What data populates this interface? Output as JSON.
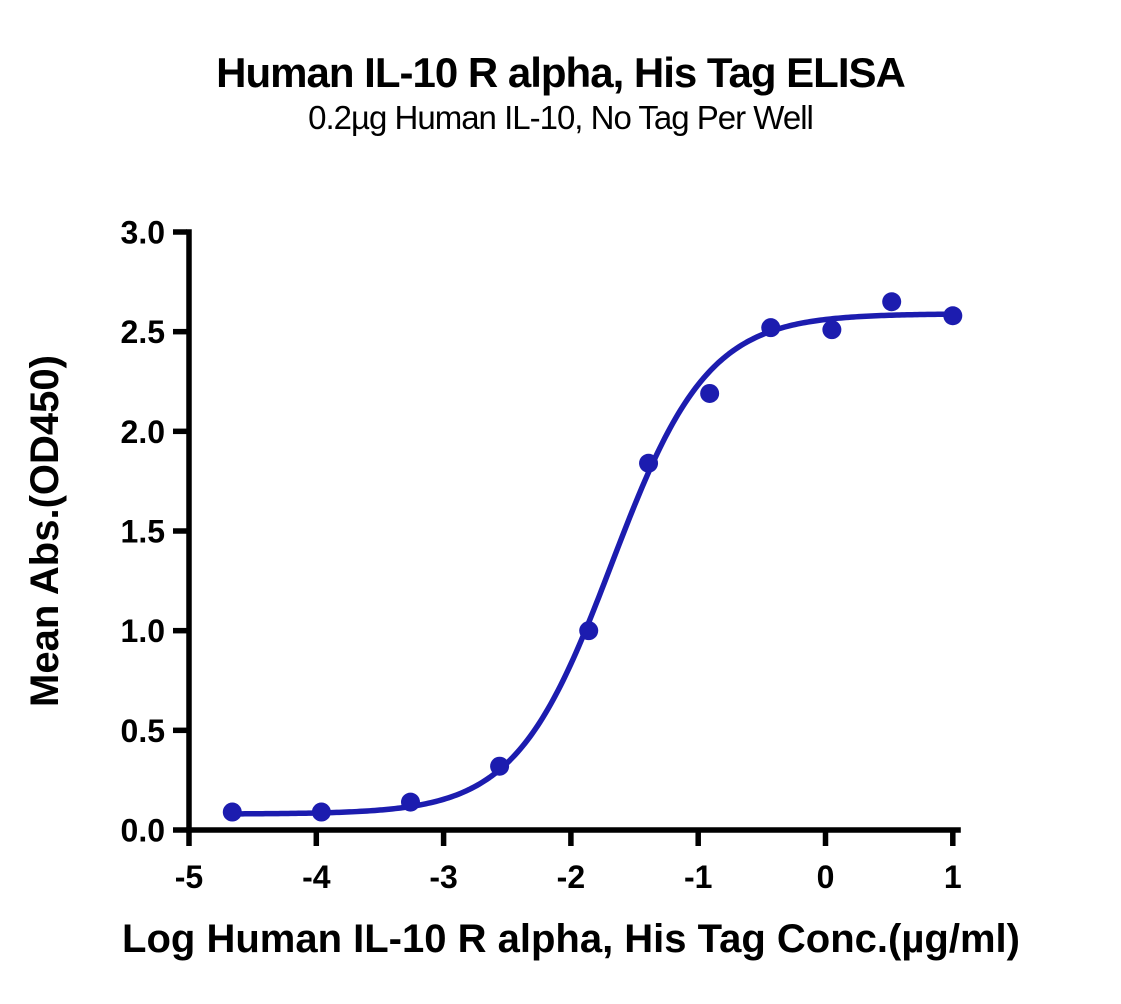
{
  "colors": {
    "accent_blue": "#1c1caf",
    "axis_black": "#000000",
    "background": "#ffffff"
  },
  "chart_data": {
    "type": "scatter",
    "title": "Human IL-10 R alpha, His Tag ELISA",
    "subtitle": "0.2µg Human IL-10, No Tag Per Well",
    "xlabel": "Log Human IL-10 R alpha, His Tag Conc.(µg/ml)",
    "ylabel": "Mean Abs.(OD450)",
    "xlim": [
      -5,
      1
    ],
    "ylim": [
      0,
      3
    ],
    "xticks": [
      -5,
      -4,
      -3,
      -2,
      -1,
      0,
      1
    ],
    "xtick_labels": [
      "-5",
      "-4",
      "-3",
      "-2",
      "-1",
      "0",
      "1"
    ],
    "yticks": [
      0,
      0.5,
      1,
      1.5,
      2,
      2.5,
      3
    ],
    "ytick_labels": [
      "0.0",
      "0.5",
      "1.0",
      "1.5",
      "2.0",
      "2.5",
      "3.0"
    ],
    "grid": false,
    "legend": null,
    "series": [
      {
        "name": "Human IL-10 R alpha, His Tag",
        "color": "#1c1caf",
        "marker": "circle",
        "x": [
          -4.66,
          -3.96,
          -3.26,
          -2.56,
          -1.86,
          -1.39,
          -0.91,
          -0.43,
          0.05,
          0.52,
          1.0
        ],
        "y": [
          0.09,
          0.09,
          0.14,
          0.32,
          1.0,
          1.84,
          2.19,
          2.52,
          2.51,
          2.65,
          2.58
        ]
      }
    ],
    "fit_curve": {
      "model": "4PL",
      "bottom": 0.08,
      "top": 2.59,
      "log_ec50": -1.68,
      "hill_slope": 1.15,
      "x_start": -4.66,
      "x_end": 1.0,
      "color": "#1c1caf"
    }
  }
}
